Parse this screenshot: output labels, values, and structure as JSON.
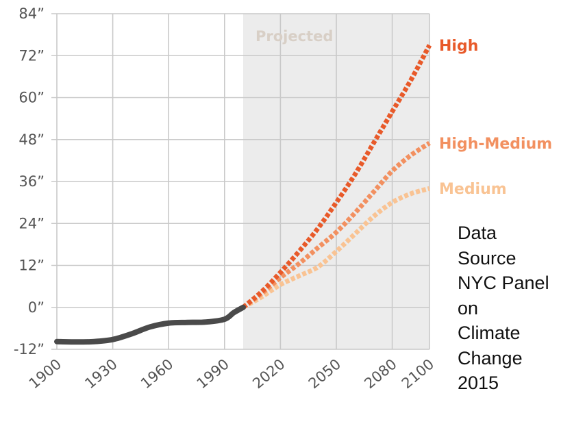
{
  "chart_data": {
    "type": "line",
    "title": "",
    "xlabel": "",
    "ylabel": "",
    "xlim": [
      1900,
      2100
    ],
    "ylim": [
      -12,
      84
    ],
    "x_ticks": [
      "1900",
      "1930",
      "1960",
      "1990",
      "2020",
      "2050",
      "2080",
      "2100"
    ],
    "x_tick_values": [
      1900,
      1930,
      1960,
      1990,
      2020,
      2050,
      2080,
      2100
    ],
    "y_ticks": [
      "84”",
      "72”",
      "60”",
      "48”",
      "36”",
      "24”",
      "12”",
      "0”",
      "-12”"
    ],
    "y_tick_values": [
      84,
      72,
      60,
      48,
      36,
      24,
      12,
      0,
      -12
    ],
    "grid": true,
    "projected_region": {
      "label": "Projected",
      "x_start": 2000,
      "x_end": 2100
    },
    "series": [
      {
        "name": "",
        "color": "#4a4a4a",
        "style": "solid",
        "x": [
          1900,
          1910,
          1920,
          1930,
          1940,
          1950,
          1960,
          1970,
          1980,
          1990,
          1995,
          2000
        ],
        "y": [
          -9.8,
          -9.9,
          -9.8,
          -9.2,
          -7.6,
          -5.6,
          -4.5,
          -4.3,
          -4.2,
          -3.4,
          -1.5,
          0
        ]
      },
      {
        "name": "High",
        "color": "#e85a2a",
        "style": "dotted",
        "x": [
          2000,
          2010,
          2020,
          2030,
          2040,
          2050,
          2060,
          2070,
          2080,
          2090,
          2100
        ],
        "y": [
          0,
          4.5,
          10,
          16,
          22.5,
          30,
          38,
          47,
          56,
          65,
          75
        ]
      },
      {
        "name": "High-Medium",
        "color": "#f29060",
        "style": "dotted",
        "x": [
          2000,
          2010,
          2020,
          2030,
          2040,
          2050,
          2060,
          2070,
          2080,
          2090,
          2100
        ],
        "y": [
          0,
          4,
          8.5,
          12.5,
          17,
          21.5,
          27,
          33,
          39,
          43.5,
          47
        ]
      },
      {
        "name": "Medium",
        "color": "#f9c393",
        "style": "dotted",
        "x": [
          2000,
          2010,
          2020,
          2030,
          2040,
          2050,
          2060,
          2070,
          2080,
          2090,
          2100
        ],
        "y": [
          0,
          3,
          6.5,
          9,
          11.5,
          16,
          21,
          26,
          30,
          32.5,
          34
        ]
      }
    ]
  },
  "source_note": {
    "lines": [
      "Data",
      "Source",
      "NYC Panel",
      "on",
      "Climate",
      "Change",
      "2015"
    ]
  }
}
